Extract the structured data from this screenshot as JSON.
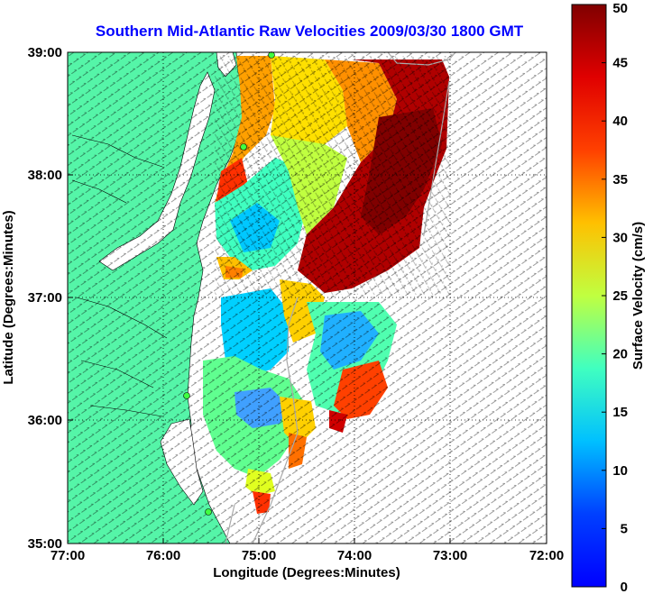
{
  "title": "Southern Mid-Atlantic Raw Velocities 2009/03/30 1800 GMT",
  "xlabel": "Longitude (Degrees:Minutes)",
  "ylabel": "Latitude (Degrees:Minutes)",
  "x_ticks": [
    "77:00",
    "76:00",
    "75:00",
    "74:00",
    "73:00",
    "72:00"
  ],
  "y_ticks": [
    "39:00",
    "38:00",
    "37:00",
    "36:00",
    "35:00"
  ],
  "colorbar": {
    "label": "Surface Velocity (cm/s)",
    "ticks": [
      "0",
      "5",
      "10",
      "15",
      "20",
      "25",
      "30",
      "35",
      "40",
      "45",
      "50"
    ],
    "range": [
      0,
      50
    ],
    "colormap": "jet"
  },
  "colors": {
    "title": "#0000ff",
    "land": "#55f5a8",
    "grid": "#000000"
  },
  "map_extent": {
    "lon": [
      -77,
      -72
    ],
    "lat": [
      35,
      39
    ]
  }
}
